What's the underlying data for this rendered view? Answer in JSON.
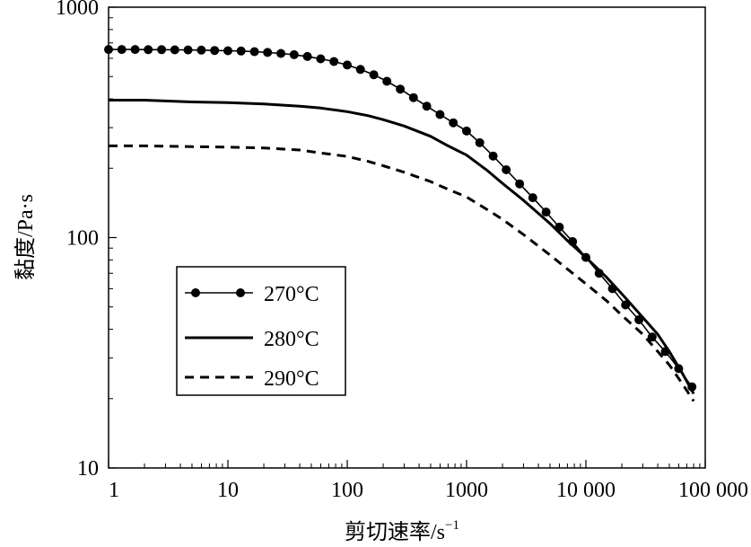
{
  "chart_data": {
    "type": "line",
    "xlabel": "剪切速率/s",
    "xlabel_sup": "−1",
    "ylabel": "黏度/Pa·s",
    "x_scale": "log",
    "y_scale": "log",
    "xlim": [
      1,
      100000
    ],
    "ylim": [
      10,
      1000
    ],
    "x_ticks": [
      {
        "value": 1,
        "label": "1"
      },
      {
        "value": 10,
        "label": "10"
      },
      {
        "value": 100,
        "label": "100"
      },
      {
        "value": 1000,
        "label": "1000"
      },
      {
        "value": 10000,
        "label": "10 000"
      },
      {
        "value": 100000,
        "label": "100 000"
      }
    ],
    "y_ticks": [
      {
        "value": 10,
        "label": "10"
      },
      {
        "value": 100,
        "label": "100"
      },
      {
        "value": 1000,
        "label": "1000"
      }
    ],
    "grid": false,
    "legend_position": "lower-left",
    "series": [
      {
        "name": "270°C",
        "style": "solid-with-markers",
        "color": "#000000",
        "x": [
          1,
          1.29,
          1.67,
          2.15,
          2.78,
          3.59,
          4.64,
          5.99,
          7.74,
          10,
          12.9,
          16.7,
          21.5,
          27.8,
          35.9,
          46.4,
          59.9,
          77.4,
          100,
          129,
          167,
          215,
          278,
          359,
          464,
          599,
          774,
          1000,
          1290,
          1670,
          2150,
          2780,
          3590,
          4640,
          5990,
          7740,
          10000,
          12900,
          16700,
          21500,
          27800,
          35900,
          46400,
          59900,
          77400
        ],
        "y": [
          655,
          655,
          655,
          654,
          654,
          653,
          652,
          651,
          649,
          647,
          645,
          641,
          636,
          630,
          622,
          611,
          597,
          581,
          561,
          537,
          509,
          477,
          441,
          405,
          372,
          342,
          315,
          290,
          258,
          226,
          197,
          171,
          149,
          129,
          111,
          96,
          82,
          70,
          60,
          51,
          44,
          37,
          32,
          27,
          22.5
        ]
      },
      {
        "name": "280°C",
        "style": "solid",
        "color": "#000000",
        "x": [
          1,
          2,
          5,
          10,
          20,
          40,
          60,
          100,
          150,
          200,
          300,
          500,
          700,
          1000,
          1500,
          2000,
          3000,
          5000,
          7000,
          10000,
          15000,
          20000,
          30000,
          40000,
          50000,
          65000,
          80000
        ],
        "y": [
          395,
          395,
          388,
          385,
          380,
          372,
          365,
          352,
          338,
          325,
          305,
          275,
          250,
          228,
          195,
          172,
          145,
          115,
          97,
          82,
          67,
          57,
          45,
          38,
          32,
          25.5,
          21
        ]
      },
      {
        "name": "290°C",
        "style": "dashed",
        "color": "#000000",
        "x": [
          1,
          2,
          5,
          10,
          20,
          40,
          60,
          100,
          150,
          200,
          300,
          500,
          700,
          1000,
          1500,
          2000,
          3000,
          5000,
          7000,
          10000,
          15000,
          20000,
          30000,
          40000,
          50000,
          65000,
          80000
        ],
        "y": [
          250,
          250,
          248,
          247,
          245,
          240,
          233,
          225,
          214,
          205,
          192,
          175,
          162,
          150,
          132,
          120,
          103,
          84,
          73,
          63,
          53,
          46,
          38,
          32,
          28,
          23,
          19.5
        ]
      }
    ]
  }
}
